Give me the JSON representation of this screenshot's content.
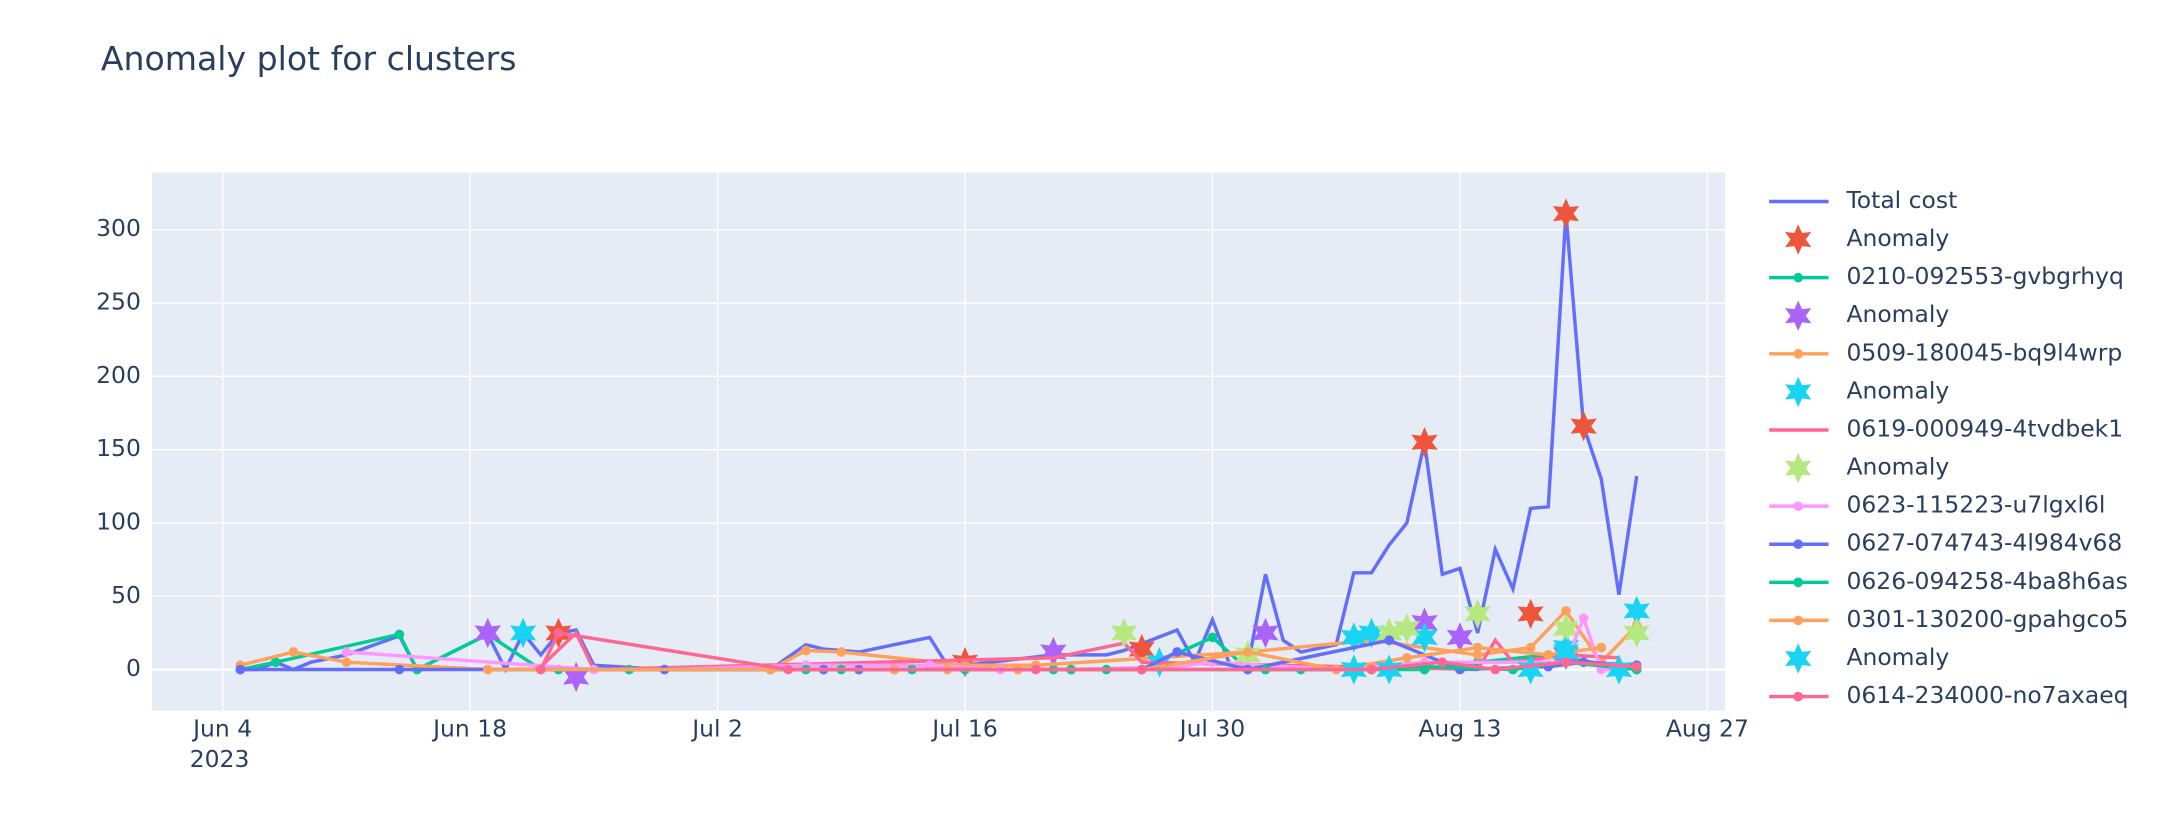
{
  "chart_data": {
    "type": "line",
    "title": "Anomaly plot for clusters",
    "xlim": [
      "2023-05-31",
      "2023-08-28"
    ],
    "ylim": [
      -28,
      339
    ],
    "xticks": [
      {
        "value": "2023-06-04",
        "label": "Jun 4"
      },
      {
        "value": "2023-06-18",
        "label": "Jun 18"
      },
      {
        "value": "2023-07-02",
        "label": "Jul 2"
      },
      {
        "value": "2023-07-16",
        "label": "Jul 16"
      },
      {
        "value": "2023-07-30",
        "label": "Jul 30"
      },
      {
        "value": "2023-08-13",
        "label": "Aug 13"
      },
      {
        "value": "2023-08-27",
        "label": "Aug 27"
      }
    ],
    "x_year": "2023",
    "yticks": [
      0,
      50,
      100,
      150,
      200,
      250,
      300
    ],
    "grid": true,
    "series": [
      {
        "name": "Total cost",
        "color": "#636efa",
        "mode": "lines",
        "x": [
          "2023-06-05",
          "2023-06-06",
          "2023-06-07",
          "2023-06-08",
          "2023-06-09",
          "2023-06-11",
          "2023-06-14",
          "2023-06-15",
          "2023-06-19",
          "2023-06-20",
          "2023-06-21",
          "2023-06-22",
          "2023-06-23",
          "2023-06-24",
          "2023-06-25",
          "2023-06-29",
          "2023-06-30",
          "2023-07-05",
          "2023-07-07",
          "2023-07-08",
          "2023-07-10",
          "2023-07-14",
          "2023-07-15",
          "2023-07-16",
          "2023-07-21",
          "2023-07-24",
          "2023-07-25",
          "2023-07-28",
          "2023-07-29",
          "2023-07-30",
          "2023-07-31",
          "2023-08-01",
          "2023-08-02",
          "2023-08-03",
          "2023-08-04",
          "2023-08-06",
          "2023-08-07",
          "2023-08-08",
          "2023-08-09",
          "2023-08-10",
          "2023-08-11",
          "2023-08-12",
          "2023-08-13",
          "2023-08-14",
          "2023-08-15",
          "2023-08-16",
          "2023-08-17",
          "2023-08-18",
          "2023-08-19",
          "2023-08-20",
          "2023-08-21",
          "2023-08-22",
          "2023-08-23"
        ],
        "values": [
          0,
          0,
          5,
          0,
          5,
          10,
          23,
          0,
          24,
          0,
          25,
          10,
          25,
          27,
          3,
          0,
          0,
          0,
          17,
          14,
          12,
          22,
          3,
          3,
          10,
          10,
          13,
          27,
          5,
          34,
          3,
          3,
          65,
          20,
          12,
          17,
          66,
          66,
          85,
          100,
          155,
          65,
          69,
          25,
          82,
          55,
          110,
          111,
          311,
          166,
          130,
          51,
          132
        ]
      },
      {
        "name": "Anomaly",
        "color": "#ef553b",
        "mode": "markers",
        "symbol": "star",
        "x": [
          "2023-06-23",
          "2023-07-16",
          "2023-07-26",
          "2023-08-11",
          "2023-08-17",
          "2023-08-19",
          "2023-08-20"
        ],
        "values": [
          25,
          5,
          14,
          155,
          38,
          311,
          166
        ]
      },
      {
        "name": "0210-092553-gvbgrhyq",
        "color": "#00cc96",
        "mode": "lines+markers",
        "x": [
          "2023-06-05",
          "2023-06-07",
          "2023-06-14",
          "2023-06-15",
          "2023-06-19",
          "2023-06-22",
          "2023-06-23",
          "2023-06-27",
          "2023-07-05",
          "2023-07-08",
          "2023-07-12",
          "2023-07-16",
          "2023-07-21",
          "2023-07-26",
          "2023-07-30",
          "2023-08-01",
          "2023-08-04",
          "2023-08-11",
          "2023-08-14",
          "2023-08-18",
          "2023-08-23"
        ],
        "values": [
          0,
          5,
          24,
          0,
          24,
          0,
          0,
          0,
          0,
          0,
          0,
          0,
          0,
          0,
          22,
          0,
          0,
          0,
          5,
          10,
          0
        ]
      },
      {
        "name": "Anomaly",
        "color": "#ab63fa",
        "mode": "markers",
        "symbol": "star",
        "x": [
          "2023-06-19",
          "2023-06-24",
          "2023-07-21",
          "2023-08-02",
          "2023-08-11",
          "2023-08-13",
          "2023-08-19"
        ],
        "values": [
          25,
          -5,
          12,
          25,
          32,
          22,
          10
        ]
      },
      {
        "name": "0509-180045-bq9l4wrp",
        "color": "#ffa15a",
        "mode": "lines+markers",
        "x": [
          "2023-06-05",
          "2023-06-08",
          "2023-06-11",
          "2023-06-19",
          "2023-07-05",
          "2023-07-07",
          "2023-07-09",
          "2023-07-16",
          "2023-07-20",
          "2023-08-01",
          "2023-08-08",
          "2023-08-14",
          "2023-08-17",
          "2023-08-19",
          "2023-08-21",
          "2023-08-23"
        ],
        "values": [
          3,
          12,
          5,
          0,
          0,
          13,
          12,
          3,
          3,
          12,
          20,
          10,
          15,
          40,
          5,
          30
        ]
      },
      {
        "name": "Anomaly",
        "color": "#19d3f3",
        "mode": "markers",
        "symbol": "star",
        "x": [
          "2023-06-21",
          "2023-07-27",
          "2023-08-07",
          "2023-08-08",
          "2023-08-11",
          "2023-08-19",
          "2023-08-23"
        ],
        "values": [
          25,
          5,
          22,
          25,
          22,
          15,
          40
        ]
      },
      {
        "name": "0619-000949-4tvdbek1",
        "color": "#ff6692",
        "mode": "lines",
        "x": [
          "2023-06-22",
          "2023-06-24",
          "2023-06-25",
          "2023-07-21",
          "2023-07-25",
          "2023-07-26",
          "2023-08-14",
          "2023-08-15",
          "2023-08-16",
          "2023-08-19",
          "2023-08-22"
        ],
        "values": [
          2,
          25,
          0,
          8,
          18,
          5,
          0,
          20,
          5,
          10,
          8
        ]
      },
      {
        "name": "Anomaly",
        "color": "#b6e880",
        "mode": "markers",
        "symbol": "star",
        "x": [
          "2023-07-25",
          "2023-08-01",
          "2023-08-09",
          "2023-08-10",
          "2023-08-14",
          "2023-08-19",
          "2023-08-23"
        ],
        "values": [
          25,
          10,
          25,
          28,
          38,
          28,
          25
        ]
      },
      {
        "name": "0623-115223-u7lgxl6l",
        "color": "#ff97ff",
        "mode": "lines+markers",
        "x": [
          "2023-06-11",
          "2023-06-25",
          "2023-06-29",
          "2023-07-07",
          "2023-07-14",
          "2023-07-18",
          "2023-07-22",
          "2023-07-28",
          "2023-07-30",
          "2023-08-06",
          "2023-08-11",
          "2023-08-19",
          "2023-08-20",
          "2023-08-21",
          "2023-08-22"
        ],
        "values": [
          12,
          0,
          0,
          3,
          3,
          0,
          0,
          2,
          5,
          0,
          5,
          5,
          35,
          0,
          0
        ]
      },
      {
        "name": "0627-074743-4l984v68",
        "color": "#636efa",
        "mode": "lines+markers",
        "x": [
          "2023-06-05",
          "2023-06-14",
          "2023-06-29",
          "2023-07-08",
          "2023-07-10",
          "2023-07-26",
          "2023-07-28",
          "2023-08-01",
          "2023-08-09",
          "2023-08-13",
          "2023-08-18",
          "2023-08-20",
          "2023-08-23"
        ],
        "values": [
          0,
          0,
          0,
          0,
          0,
          0,
          12,
          0,
          20,
          0,
          2,
          5,
          3
        ]
      },
      {
        "name": "0626-094258-4ba8h6as",
        "color": "#00cc96",
        "mode": "lines+markers",
        "x": [
          "2023-07-05",
          "2023-07-07",
          "2023-07-09",
          "2023-07-13",
          "2023-07-22",
          "2023-07-24",
          "2023-08-02",
          "2023-08-08",
          "2023-08-11",
          "2023-08-16",
          "2023-08-19",
          "2023-08-23"
        ],
        "values": [
          0,
          0,
          0,
          0,
          0,
          0,
          0,
          0,
          2,
          0,
          5,
          0
        ]
      },
      {
        "name": "0301-130200-gpahgco5",
        "color": "#ffa15a",
        "mode": "lines+markers",
        "x": [
          "2023-06-19",
          "2023-07-05",
          "2023-07-12",
          "2023-07-15",
          "2023-07-19",
          "2023-07-26",
          "2023-08-01",
          "2023-08-06",
          "2023-08-10",
          "2023-08-14",
          "2023-08-18",
          "2023-08-21"
        ],
        "values": [
          0,
          0,
          0,
          0,
          0,
          0,
          12,
          0,
          8,
          15,
          10,
          15
        ]
      },
      {
        "name": "Anomaly",
        "color": "#19d3f3",
        "mode": "markers",
        "symbol": "star",
        "x": [
          "2023-08-07",
          "2023-08-09",
          "2023-08-17",
          "2023-08-19",
          "2023-08-22"
        ],
        "values": [
          0,
          0,
          0,
          12,
          0
        ]
      },
      {
        "name": "0614-234000-no7axaeq",
        "color": "#ff6692",
        "mode": "lines+markers",
        "x": [
          "2023-06-22",
          "2023-06-23",
          "2023-07-06",
          "2023-07-20",
          "2023-07-26",
          "2023-08-08",
          "2023-08-12",
          "2023-08-15",
          "2023-08-19",
          "2023-08-23"
        ],
        "values": [
          0,
          25,
          0,
          0,
          0,
          0,
          5,
          0,
          5,
          2
        ]
      }
    ]
  }
}
